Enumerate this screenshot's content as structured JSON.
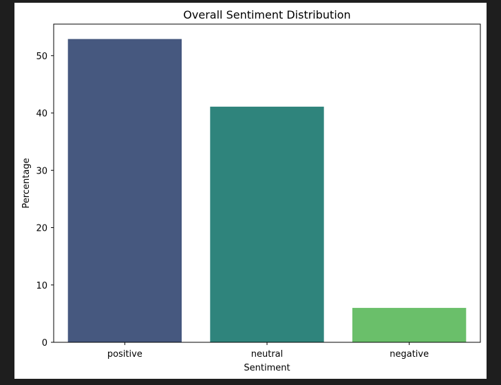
{
  "chart_data": {
    "type": "bar",
    "title": "Overall Sentiment Distribution",
    "xlabel": "Sentiment",
    "ylabel": "Percentage",
    "categories": [
      "positive",
      "neutral",
      "negative"
    ],
    "values": [
      52.9,
      41.1,
      6.0
    ],
    "colors": [
      "#46587f",
      "#2f847c",
      "#6abf6a"
    ],
    "ylim": [
      0,
      55.5
    ],
    "yticks": [
      0,
      10,
      20,
      30,
      40,
      50
    ],
    "grid": false,
    "legend": "none"
  }
}
